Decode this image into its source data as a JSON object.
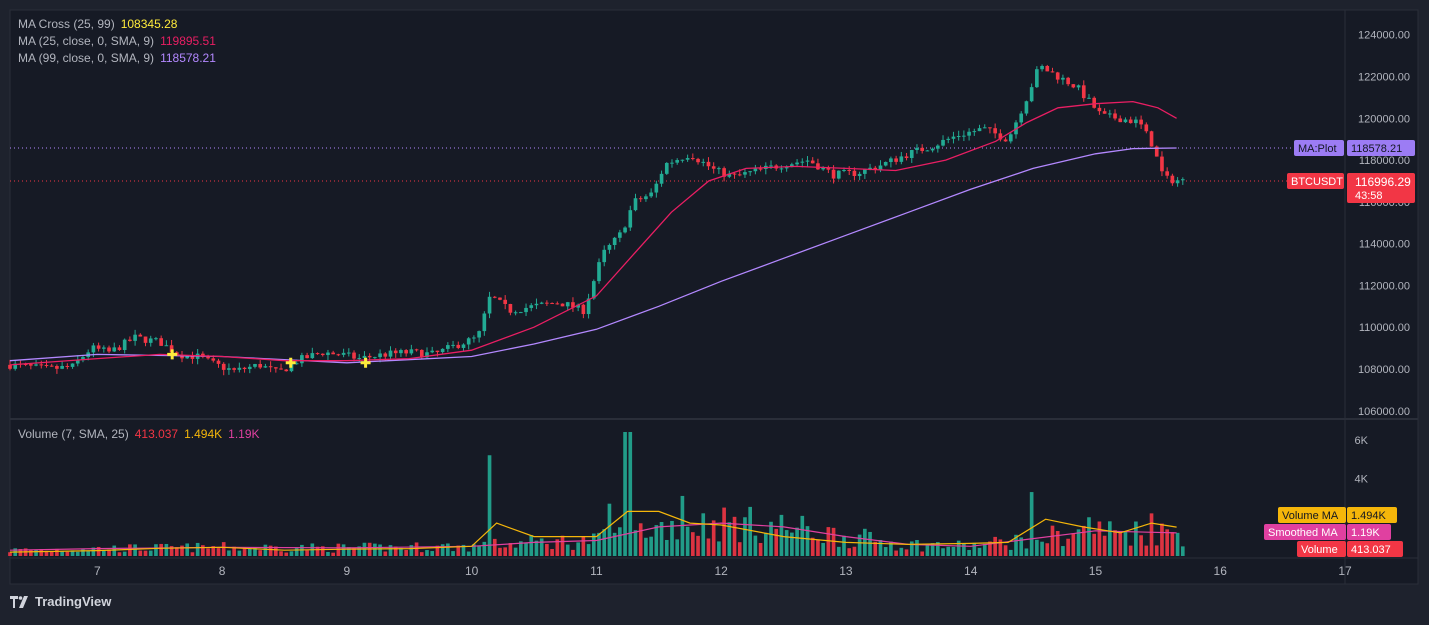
{
  "app": {
    "brand": "TradingView"
  },
  "price_legend": [
    {
      "label": "MA Cross (25, 99)",
      "value": "108345.28",
      "color": "#ffeb3b"
    },
    {
      "label": "MA (25, close, 0, SMA, 9)",
      "value": "119895.51",
      "color": "#e91e63"
    },
    {
      "label": "MA (99, close, 0, SMA, 9)",
      "value": "118578.21",
      "color": "#b388ff"
    }
  ],
  "volume_legend": {
    "label": "Volume (7, SMA, 25)",
    "values": [
      {
        "value": "413.037",
        "color": "#f23645"
      },
      {
        "value": "1.494K",
        "color": "#f5b60a"
      },
      {
        "value": "1.19K",
        "color": "#e040a0"
      }
    ]
  },
  "badges": {
    "ma_plot": {
      "label": "MA:Plot",
      "value": "118578.21",
      "color": "#9c7cf4"
    },
    "symbol": {
      "label": "BTCUSDT",
      "value": "116996.29",
      "countdown": "43:58",
      "color": "#f23645"
    },
    "volume_ma": {
      "label": "Volume MA",
      "value": "1.494K",
      "color": "#f5b60a"
    },
    "smoothed_ma": {
      "label": "Smoothed MA",
      "value": "1.19K",
      "color": "#e040a0"
    },
    "volume": {
      "label": "Volume",
      "value": "413.037",
      "color": "#f23645"
    }
  },
  "colors": {
    "up": "#22ab94",
    "down": "#f23645",
    "ma25": "#e91e63",
    "ma99": "#b388ff",
    "cross": "#ffeb3b",
    "vol_ma": "#f5b60a",
    "vol_smooth": "#e040a0",
    "grid": "#2a2e39",
    "axis_text": "#b2b5be"
  },
  "chart_data": [
    {
      "type": "candlestick",
      "title": "",
      "symbol": "BTCUSDT",
      "x_ticks": [
        "7",
        "8",
        "9",
        "10",
        "11",
        "12",
        "13",
        "14",
        "15",
        "16",
        "17"
      ],
      "x_range": [
        6.3,
        17
      ],
      "y_ticks": [
        106000,
        108000,
        110000,
        112000,
        114000,
        116000,
        118000,
        120000,
        122000,
        124000
      ],
      "y_range": [
        105800,
        124800
      ],
      "grid": false,
      "close_path": [
        [
          6.3,
          108200
        ],
        [
          6.6,
          108000
        ],
        [
          6.8,
          108100
        ],
        [
          6.95,
          109000
        ],
        [
          7.1,
          108800
        ],
        [
          7.3,
          109500
        ],
        [
          7.5,
          109300
        ],
        [
          7.65,
          108700
        ],
        [
          7.8,
          108600
        ],
        [
          7.95,
          108200
        ],
        [
          8.1,
          107900
        ],
        [
          8.3,
          108200
        ],
        [
          8.45,
          107800
        ],
        [
          8.6,
          108400
        ],
        [
          8.8,
          108800
        ],
        [
          8.95,
          108700
        ],
        [
          9.1,
          108500
        ],
        [
          9.3,
          108700
        ],
        [
          9.5,
          108800
        ],
        [
          9.7,
          108700
        ],
        [
          9.9,
          109200
        ],
        [
          10.05,
          109500
        ],
        [
          10.15,
          111500
        ],
        [
          10.3,
          110800
        ],
        [
          10.5,
          111000
        ],
        [
          10.7,
          111200
        ],
        [
          10.9,
          110800
        ],
        [
          11.05,
          113500
        ],
        [
          11.2,
          114500
        ],
        [
          11.3,
          116000
        ],
        [
          11.45,
          116400
        ],
        [
          11.55,
          117800
        ],
        [
          11.75,
          118300
        ],
        [
          11.95,
          117500
        ],
        [
          12.1,
          117200
        ],
        [
          12.3,
          117500
        ],
        [
          12.5,
          117800
        ],
        [
          12.7,
          118000
        ],
        [
          12.9,
          117300
        ],
        [
          13.1,
          117400
        ],
        [
          13.3,
          117800
        ],
        [
          13.5,
          118300
        ],
        [
          13.7,
          118700
        ],
        [
          13.9,
          119200
        ],
        [
          14.1,
          119500
        ],
        [
          14.3,
          119000
        ],
        [
          14.45,
          121000
        ],
        [
          14.55,
          122500
        ],
        [
          14.7,
          122000
        ],
        [
          14.85,
          121500
        ],
        [
          14.95,
          120800
        ],
        [
          15.05,
          120100
        ],
        [
          15.2,
          120000
        ],
        [
          15.35,
          119800
        ],
        [
          15.45,
          118800
        ],
        [
          15.55,
          117100
        ],
        [
          15.7,
          117000
        ]
      ],
      "ma25": [
        [
          6.3,
          108200
        ],
        [
          7,
          108500
        ],
        [
          7.5,
          108700
        ],
        [
          8,
          108600
        ],
        [
          8.5,
          108400
        ],
        [
          9,
          108400
        ],
        [
          9.5,
          108500
        ],
        [
          10,
          108900
        ],
        [
          10.5,
          110000
        ],
        [
          11,
          111500
        ],
        [
          11.3,
          113500
        ],
        [
          11.6,
          115500
        ],
        [
          11.9,
          117000
        ],
        [
          12.2,
          117600
        ],
        [
          12.6,
          117700
        ],
        [
          13,
          117600
        ],
        [
          13.4,
          117500
        ],
        [
          13.8,
          118000
        ],
        [
          14.2,
          118900
        ],
        [
          14.45,
          119800
        ],
        [
          14.7,
          120500
        ],
        [
          15,
          120700
        ],
        [
          15.3,
          120800
        ],
        [
          15.5,
          120500
        ],
        [
          15.65,
          120000
        ]
      ],
      "ma99": [
        [
          6.3,
          108400
        ],
        [
          7,
          108700
        ],
        [
          8,
          108600
        ],
        [
          9,
          108300
        ],
        [
          10,
          108600
        ],
        [
          10.5,
          109200
        ],
        [
          11,
          109900
        ],
        [
          11.5,
          111000
        ],
        [
          12,
          112200
        ],
        [
          12.5,
          113300
        ],
        [
          13,
          114400
        ],
        [
          13.5,
          115500
        ],
        [
          14,
          116600
        ],
        [
          14.5,
          117600
        ],
        [
          15,
          118300
        ],
        [
          15.3,
          118550
        ],
        [
          15.65,
          118578
        ]
      ],
      "cross_markers": [
        [
          7.6,
          108700
        ],
        [
          8.55,
          108300
        ],
        [
          9.15,
          108300
        ]
      ],
      "reference_lines": [
        118578.21,
        116996.29
      ]
    },
    {
      "type": "bar",
      "title": "Volume (7, SMA, 25)",
      "y_ticks_labeled": [
        "4K",
        "6K"
      ],
      "y_ticks_values": [
        4000,
        6000
      ],
      "y_range": [
        0,
        6400
      ],
      "highlights": [
        [
          10.15,
          5200
        ],
        [
          11.25,
          6400
        ],
        [
          11.1,
          2700
        ],
        [
          11.7,
          3100
        ],
        [
          12.2,
          2000
        ],
        [
          14.5,
          3300
        ],
        [
          14.95,
          2000
        ],
        [
          15.45,
          2200
        ]
      ],
      "volume_ma": [
        [
          6.3,
          200
        ],
        [
          7,
          280
        ],
        [
          7.5,
          400
        ],
        [
          8,
          450
        ],
        [
          8.5,
          300
        ],
        [
          9,
          350
        ],
        [
          9.5,
          380
        ],
        [
          10,
          500
        ],
        [
          10.2,
          1700
        ],
        [
          10.5,
          1000
        ],
        [
          11,
          1000
        ],
        [
          11.25,
          2300
        ],
        [
          11.5,
          2300
        ],
        [
          11.75,
          1700
        ],
        [
          12,
          1600
        ],
        [
          12.5,
          1000
        ],
        [
          13,
          700
        ],
        [
          13.5,
          600
        ],
        [
          14,
          650
        ],
        [
          14.3,
          700
        ],
        [
          14.6,
          1900
        ],
        [
          14.9,
          1500
        ],
        [
          15.2,
          1200
        ],
        [
          15.45,
          1700
        ],
        [
          15.65,
          1494
        ]
      ],
      "smoothed_ma": [
        [
          6.3,
          300
        ],
        [
          7,
          380
        ],
        [
          8,
          450
        ],
        [
          9,
          420
        ],
        [
          10,
          500
        ],
        [
          10.5,
          700
        ],
        [
          11,
          800
        ],
        [
          11.5,
          1500
        ],
        [
          12,
          1700
        ],
        [
          12.5,
          1500
        ],
        [
          13,
          1000
        ],
        [
          13.5,
          600
        ],
        [
          14,
          500
        ],
        [
          14.5,
          900
        ],
        [
          15,
          1300
        ],
        [
          15.3,
          1250
        ],
        [
          15.65,
          1190
        ]
      ]
    }
  ]
}
